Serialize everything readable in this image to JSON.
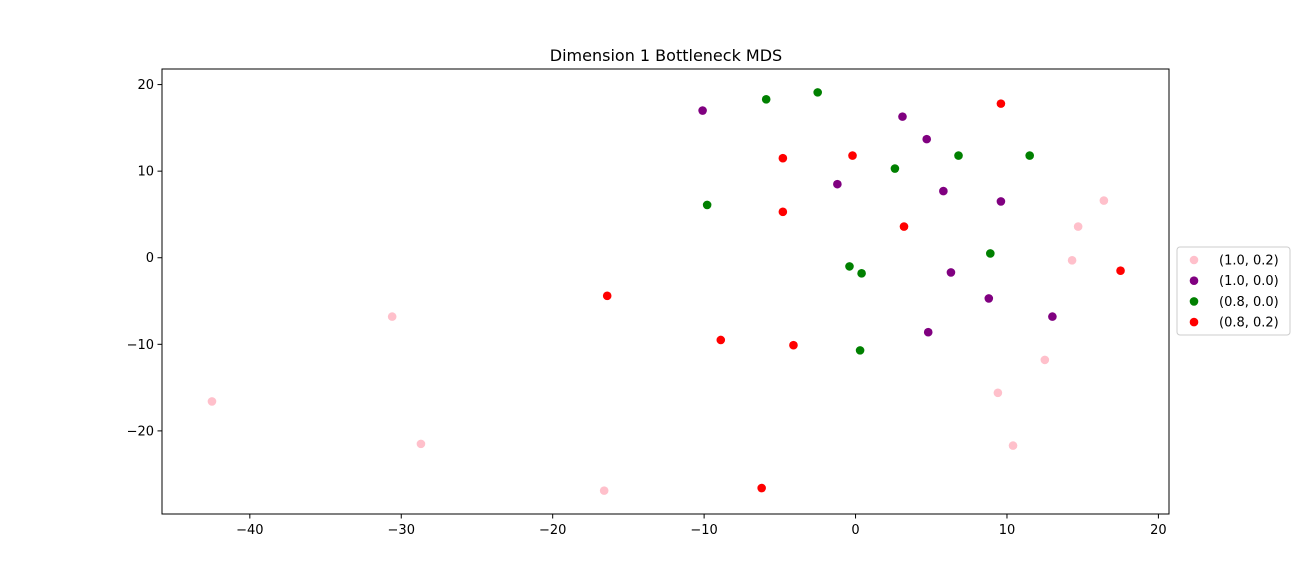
{
  "chart_data": {
    "type": "scatter",
    "title": "Dimension 1 Bottleneck MDS",
    "xlabel": "",
    "ylabel": "",
    "xlim": [
      -45.8,
      20.7
    ],
    "ylim": [
      -29.6,
      21.8
    ],
    "xticks": [
      -40,
      -30,
      -20,
      -10,
      0,
      10,
      20
    ],
    "yticks": [
      -20,
      -10,
      0,
      10,
      20
    ],
    "grid": false,
    "legend_position": "center-right-outside",
    "series": [
      {
        "name": "(1.0, 0.2)",
        "color": "#ffc0cb",
        "points": [
          {
            "x": -42.5,
            "y": -16.6
          },
          {
            "x": -30.6,
            "y": -6.8
          },
          {
            "x": -28.7,
            "y": -21.5
          },
          {
            "x": -16.6,
            "y": -26.9
          },
          {
            "x": 9.4,
            "y": -15.6
          },
          {
            "x": 10.4,
            "y": -21.7
          },
          {
            "x": 12.5,
            "y": -11.8
          },
          {
            "x": 14.3,
            "y": -0.3
          },
          {
            "x": 14.7,
            "y": 3.6
          },
          {
            "x": 16.4,
            "y": 6.6
          }
        ]
      },
      {
        "name": "(1.0, 0.0)",
        "color": "#800080",
        "points": [
          {
            "x": -10.1,
            "y": 17.0
          },
          {
            "x": -1.2,
            "y": 8.5
          },
          {
            "x": 3.1,
            "y": 16.3
          },
          {
            "x": 4.7,
            "y": 13.7
          },
          {
            "x": 5.8,
            "y": 7.7
          },
          {
            "x": 9.6,
            "y": 6.5
          },
          {
            "x": 6.3,
            "y": -1.7
          },
          {
            "x": 8.8,
            "y": -4.7
          },
          {
            "x": 4.8,
            "y": -8.6
          },
          {
            "x": 13.0,
            "y": -6.8
          }
        ]
      },
      {
        "name": "(0.8, 0.0)",
        "color": "#008000",
        "points": [
          {
            "x": -5.9,
            "y": 18.3
          },
          {
            "x": -2.5,
            "y": 19.1
          },
          {
            "x": 2.6,
            "y": 10.3
          },
          {
            "x": 6.8,
            "y": 11.8
          },
          {
            "x": 11.5,
            "y": 11.8
          },
          {
            "x": -9.8,
            "y": 6.1
          },
          {
            "x": -0.4,
            "y": -1.0
          },
          {
            "x": 0.4,
            "y": -1.8
          },
          {
            "x": 8.9,
            "y": 0.5
          },
          {
            "x": 0.3,
            "y": -10.7
          }
        ]
      },
      {
        "name": "(0.8, 0.2)",
        "color": "#ff0000",
        "points": [
          {
            "x": 9.6,
            "y": 17.8
          },
          {
            "x": -4.8,
            "y": 11.5
          },
          {
            "x": -0.2,
            "y": 11.8
          },
          {
            "x": -4.8,
            "y": 5.3
          },
          {
            "x": 3.2,
            "y": 3.6
          },
          {
            "x": 17.5,
            "y": -1.5
          },
          {
            "x": -16.4,
            "y": -4.4
          },
          {
            "x": -8.9,
            "y": -9.5
          },
          {
            "x": -4.1,
            "y": -10.1
          },
          {
            "x": -6.2,
            "y": -26.6
          }
        ]
      }
    ]
  }
}
